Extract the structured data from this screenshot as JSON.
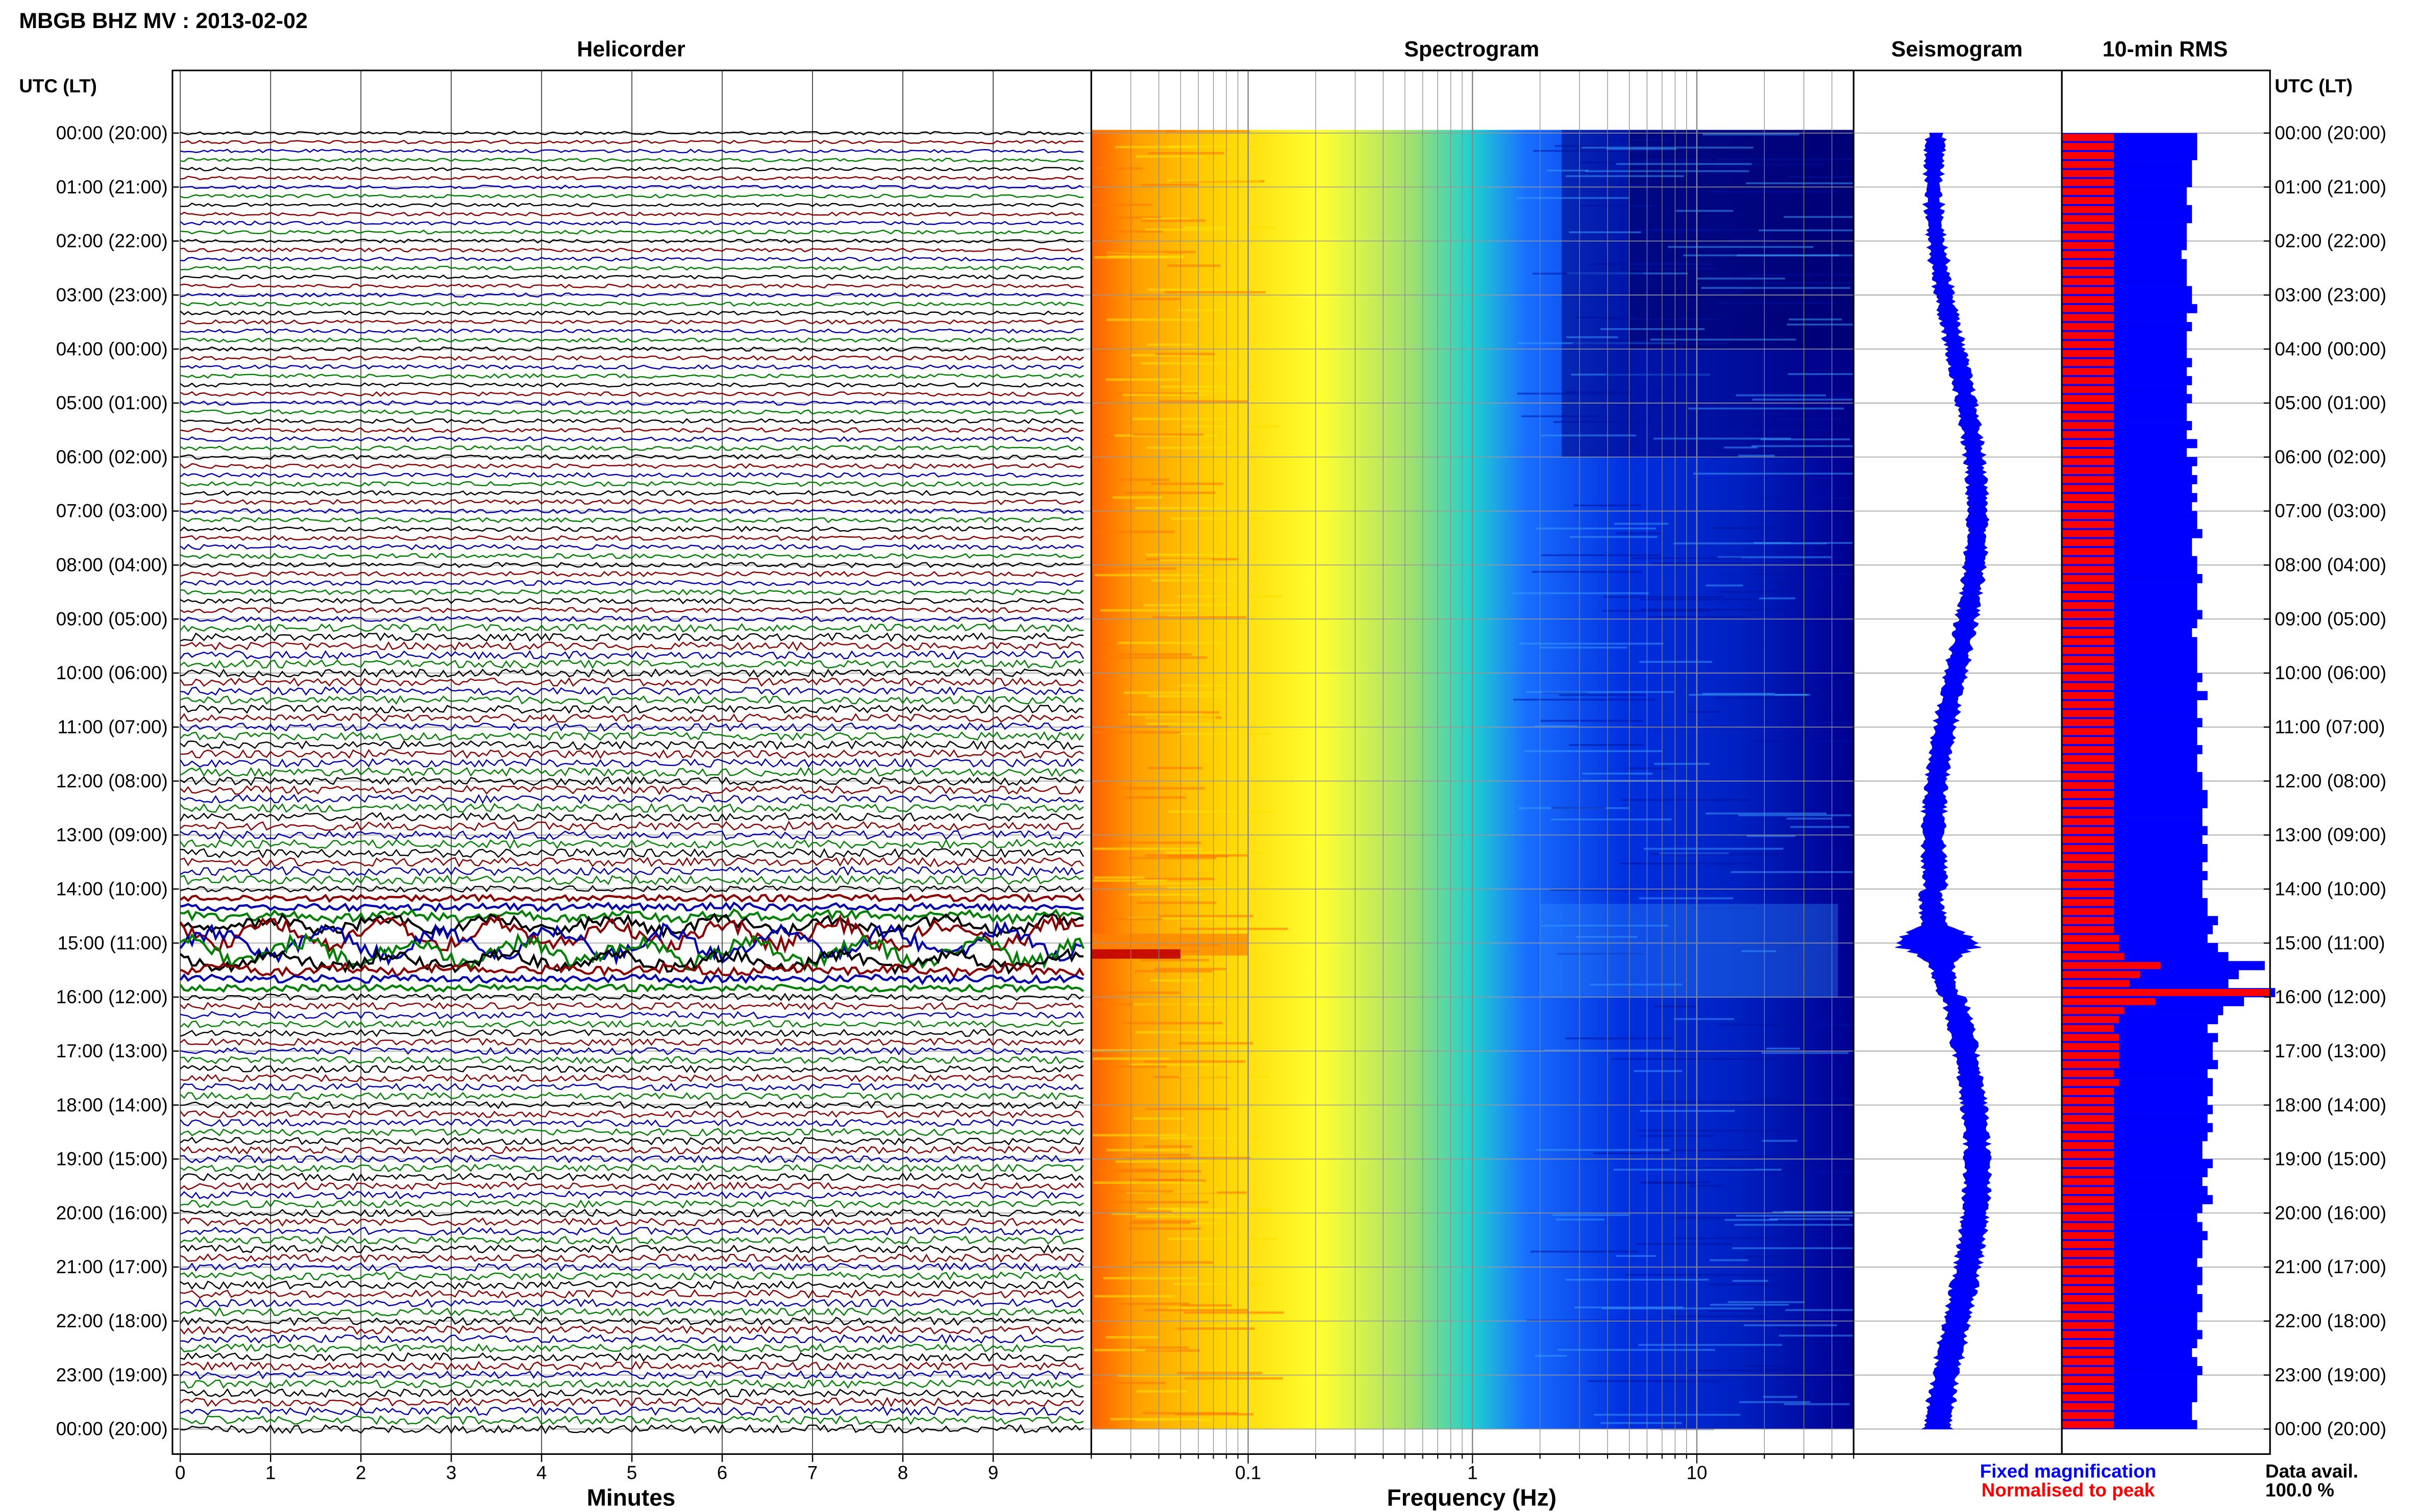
{
  "header": {
    "title_station": "MBGB BHZ MV",
    "title_sep": " : ",
    "title_date": "2013-02-02"
  },
  "panels": {
    "helicorder": "Helicorder",
    "spectrogram": "Spectrogram",
    "seismogram": "Seismogram",
    "rms": "10-min RMS"
  },
  "axis": {
    "time_header_left": "UTC (LT)",
    "time_header_right": "UTC (LT)",
    "minutes_label": "Minutes",
    "frequency_label": "Frequency (Hz)"
  },
  "legend": {
    "fixed": "Fixed magnification",
    "fixed_color": "#0000ff",
    "normalised": "Normalised to peak",
    "normalised_color": "#ff0000"
  },
  "data_avail": {
    "label": "Data avail.",
    "value": "100.0 %"
  },
  "colors": {
    "trace_cycle": [
      "#000000",
      "#8b0000",
      "#0000b0",
      "#008000"
    ],
    "spectrogram_stops": [
      "#ff6000",
      "#ffd000",
      "#ffff30",
      "#20d0d0",
      "#1a6fff",
      "#0020d0",
      "#000080"
    ]
  },
  "chart_data": [
    {
      "type": "line",
      "panel": "Helicorder",
      "xlabel": "Minutes",
      "xlim": [
        0,
        10
      ],
      "x_ticks": [
        "0",
        "1",
        "2",
        "3",
        "4",
        "5",
        "6",
        "7",
        "8",
        "9"
      ],
      "ylabel": "UTC (LT)",
      "y_ticks": [
        "00:00 (20:00)",
        "01:00 (21:00)",
        "02:00 (22:00)",
        "03:00 (23:00)",
        "04:00 (00:00)",
        "05:00 (01:00)",
        "06:00 (02:00)",
        "07:00 (03:00)",
        "08:00 (04:00)",
        "09:00 (05:00)",
        "10:00 (06:00)",
        "11:00 (07:00)",
        "12:00 (08:00)",
        "13:00 (09:00)",
        "14:00 (10:00)",
        "15:00 (11:00)",
        "16:00 (12:00)",
        "17:00 (13:00)",
        "18:00 (14:00)",
        "19:00 (15:00)",
        "20:00 (16:00)",
        "21:00 (17:00)",
        "22:00 (18:00)",
        "23:00 (19:00)",
        "00:00 (20:00)"
      ],
      "traces": 144,
      "event_time_utc": "15:00"
    },
    {
      "type": "heatmap",
      "panel": "Spectrogram",
      "xlabel": "Frequency (Hz)",
      "x_scale": "log",
      "xlim": [
        0.02,
        50
      ],
      "x_ticks": [
        "0.1",
        "1",
        "10"
      ]
    },
    {
      "type": "line",
      "panel": "Seismogram"
    },
    {
      "type": "bar",
      "panel": "10-min RMS",
      "orientation": "horizontal",
      "bins": 144,
      "series": [
        {
          "name": "Fixed magnification",
          "color": "#0000ff",
          "values": [
            1.3,
            1.3,
            1.3,
            1.25,
            1.25,
            1.25,
            1.2,
            1.2,
            1.25,
            1.25,
            1.2,
            1.2,
            1.2,
            1.15,
            1.2,
            1.2,
            1.2,
            1.25,
            1.25,
            1.3,
            1.2,
            1.25,
            1.2,
            1.2,
            1.2,
            1.25,
            1.2,
            1.25,
            1.2,
            1.25,
            1.2,
            1.2,
            1.25,
            1.2,
            1.3,
            1.2,
            1.3,
            1.25,
            1.3,
            1.25,
            1.3,
            1.25,
            1.3,
            1.3,
            1.35,
            1.25,
            1.25,
            1.3,
            1.3,
            1.35,
            1.3,
            1.3,
            1.3,
            1.35,
            1.3,
            1.25,
            1.3,
            1.3,
            1.3,
            1.3,
            1.35,
            1.3,
            1.4,
            1.3,
            1.3,
            1.35,
            1.3,
            1.3,
            1.35,
            1.3,
            1.3,
            1.35,
            1.35,
            1.4,
            1.4,
            1.35,
            1.35,
            1.4,
            1.35,
            1.4,
            1.4,
            1.35,
            1.4,
            1.35,
            1.35,
            1.4,
            1.4,
            1.5,
            1.45,
            1.4,
            1.5,
            1.6,
            1.95,
            1.7,
            1.6,
            2.05,
            1.75,
            1.55,
            1.5,
            1.4,
            1.5,
            1.45,
            1.45,
            1.5,
            1.4,
            1.45,
            1.45,
            1.4,
            1.45,
            1.4,
            1.45,
            1.4,
            1.35,
            1.35,
            1.45,
            1.4,
            1.35,
            1.4,
            1.45,
            1.35,
            1.3,
            1.35,
            1.4,
            1.35,
            1.35,
            1.3,
            1.35,
            1.35,
            1.3,
            1.35,
            1.35,
            1.3,
            1.3,
            1.35,
            1.3,
            1.25,
            1.3,
            1.35,
            1.3,
            1.3,
            1.3,
            1.25,
            1.25,
            1.3
          ]
        },
        {
          "name": "Normalised to peak",
          "color": "#ff0000",
          "values": [
            0.5,
            0.5,
            0.5,
            0.5,
            0.5,
            0.5,
            0.5,
            0.5,
            0.5,
            0.5,
            0.5,
            0.5,
            0.5,
            0.5,
            0.5,
            0.5,
            0.5,
            0.5,
            0.5,
            0.5,
            0.5,
            0.5,
            0.5,
            0.5,
            0.5,
            0.5,
            0.5,
            0.5,
            0.5,
            0.5,
            0.5,
            0.5,
            0.5,
            0.5,
            0.5,
            0.5,
            0.5,
            0.5,
            0.5,
            0.5,
            0.5,
            0.5,
            0.5,
            0.5,
            0.5,
            0.5,
            0.5,
            0.5,
            0.5,
            0.5,
            0.5,
            0.5,
            0.5,
            0.5,
            0.5,
            0.5,
            0.5,
            0.5,
            0.5,
            0.5,
            0.5,
            0.5,
            0.5,
            0.5,
            0.5,
            0.5,
            0.5,
            0.5,
            0.5,
            0.5,
            0.5,
            0.5,
            0.5,
            0.5,
            0.5,
            0.5,
            0.5,
            0.5,
            0.5,
            0.5,
            0.5,
            0.5,
            0.5,
            0.5,
            0.5,
            0.5,
            0.5,
            0.5,
            0.5,
            0.55,
            0.55,
            0.6,
            0.95,
            0.75,
            0.65,
            2.0,
            0.9,
            0.6,
            0.55,
            0.5,
            0.55,
            0.55,
            0.55,
            0.55,
            0.5,
            0.55,
            0.5,
            0.5,
            0.5,
            0.5,
            0.5,
            0.5,
            0.5,
            0.5,
            0.5,
            0.5,
            0.5,
            0.5,
            0.5,
            0.5,
            0.5,
            0.5,
            0.5,
            0.5,
            0.5,
            0.5,
            0.5,
            0.5,
            0.5,
            0.5,
            0.5,
            0.5,
            0.5,
            0.5,
            0.5,
            0.5,
            0.5,
            0.5,
            0.5,
            0.5,
            0.5,
            0.5,
            0.5,
            0.5
          ]
        }
      ]
    }
  ]
}
